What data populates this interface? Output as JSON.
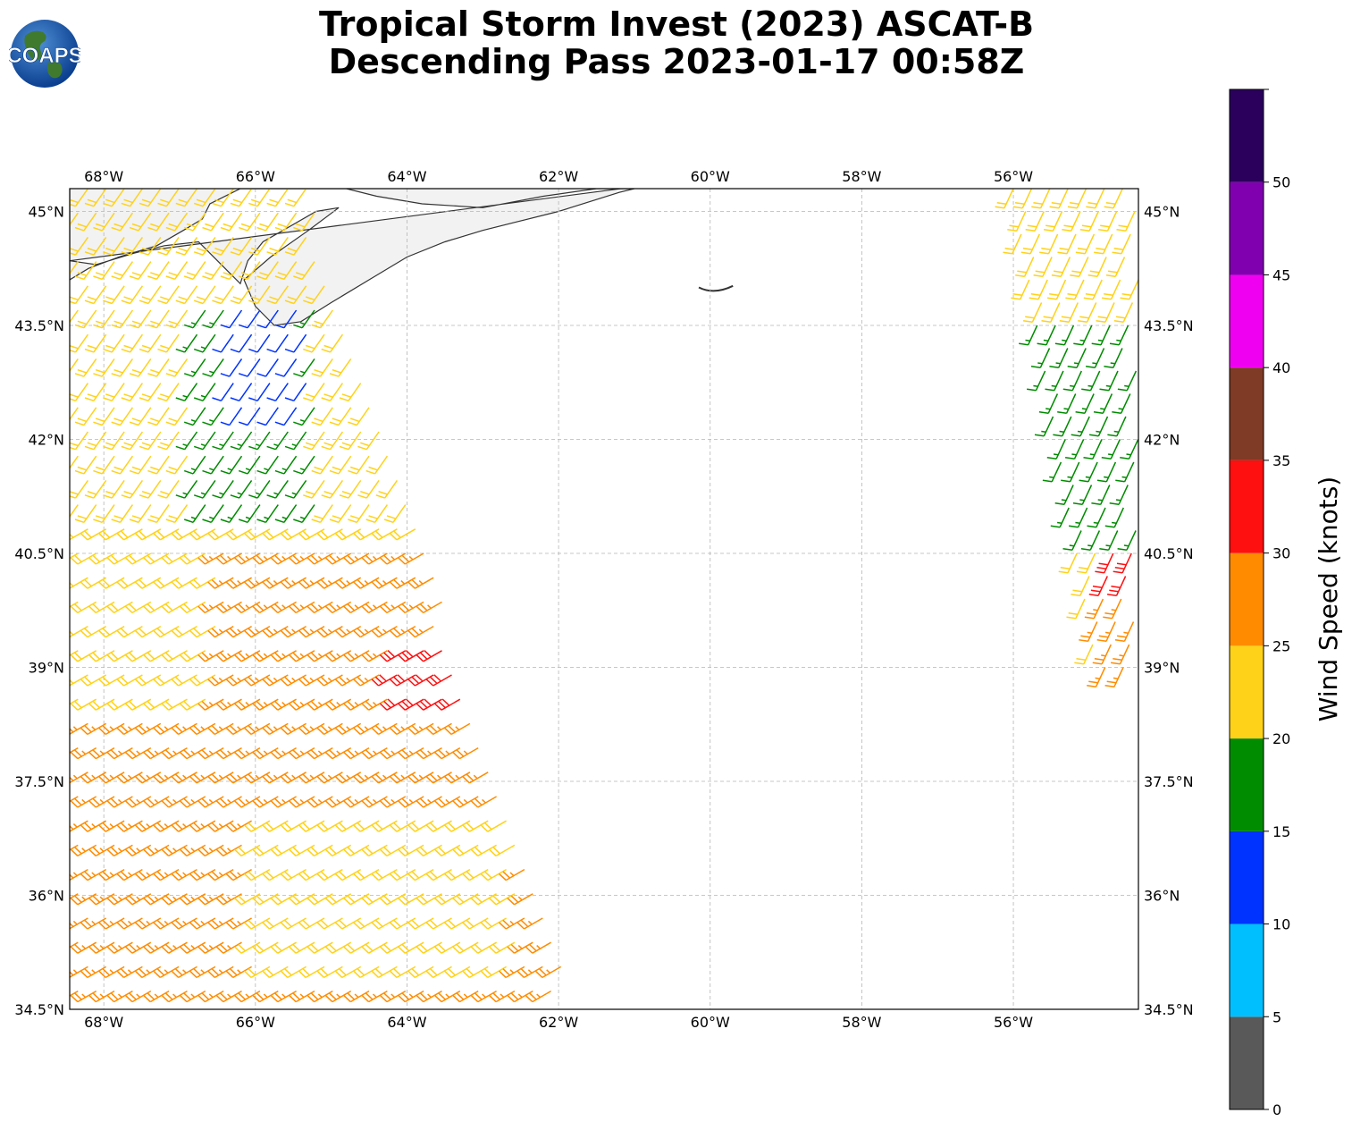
{
  "title": {
    "line1": "Tropical Storm Invest (2023) ASCAT-B",
    "line2": "Descending Pass 2023-01-17 00:58Z"
  },
  "logo": {
    "text": "COAPS"
  },
  "map": {
    "lon_range": [
      -68.45,
      -54.35
    ],
    "lat_range": [
      34.5,
      45.3
    ],
    "lon_ticks": [
      {
        "value": -68,
        "label": "68°W"
      },
      {
        "value": -66,
        "label": "66°W"
      },
      {
        "value": -64,
        "label": "64°W"
      },
      {
        "value": -62,
        "label": "62°W"
      },
      {
        "value": -60,
        "label": "60°W"
      },
      {
        "value": -58,
        "label": "58°W"
      },
      {
        "value": -56,
        "label": "56°W"
      }
    ],
    "lat_ticks": [
      {
        "value": 45,
        "label": "45°N"
      },
      {
        "value": 43.5,
        "label": "43.5°N"
      },
      {
        "value": 42,
        "label": "42°N"
      },
      {
        "value": 40.5,
        "label": "40.5°N"
      },
      {
        "value": 39,
        "label": "39°N"
      },
      {
        "value": 37.5,
        "label": "37.5°N"
      },
      {
        "value": 36,
        "label": "36°N"
      },
      {
        "value": 34.5,
        "label": "34.5°N"
      }
    ],
    "gridlines": true,
    "land_color": "#f2f2f2",
    "coast_color": "#333333"
  },
  "colorbar": {
    "label": "Wind Speed (knots)",
    "ticks": [
      "0",
      "5",
      "10",
      "15",
      "20",
      "25",
      "30",
      "35",
      "40",
      "45",
      "50"
    ],
    "bins": [
      {
        "from": 0,
        "to": 5,
        "color": "#595959"
      },
      {
        "from": 5,
        "to": 10,
        "color": "#00bfff"
      },
      {
        "from": 10,
        "to": 15,
        "color": "#0033ff"
      },
      {
        "from": 15,
        "to": 20,
        "color": "#008c00"
      },
      {
        "from": 20,
        "to": 25,
        "color": "#ffd21a"
      },
      {
        "from": 25,
        "to": 30,
        "color": "#ff8c00"
      },
      {
        "from": 30,
        "to": 35,
        "color": "#ff1010"
      },
      {
        "from": 35,
        "to": 40,
        "color": "#7f3b26"
      },
      {
        "from": 40,
        "to": 45,
        "color": "#f000f0"
      },
      {
        "from": 45,
        "to": 50,
        "color": "#8000b0"
      },
      {
        "from": 50,
        "to": 55,
        "color": "#2a005c"
      }
    ]
  },
  "chart_data": {
    "type": "wind-barb-map",
    "swaths": [
      {
        "lon_top": [
          -68.45,
          -65.3
        ],
        "lon_bottom": [
          -68.45,
          -61.8
        ],
        "lat_range": [
          34.55,
          45.3
        ],
        "speed_zones": [
          {
            "lat_min": 41.0,
            "lat_max": 45.3,
            "lon_min": -68.45,
            "lon_max": -65.0,
            "speed_kt": 22
          },
          {
            "lat_min": 41.0,
            "lat_max": 44.0,
            "lon_min": -66.8,
            "lon_max": -65.2,
            "speed_kt": 17
          },
          {
            "lat_min": 42.2,
            "lat_max": 43.8,
            "lon_min": -66.3,
            "lon_max": -65.3,
            "speed_kt": 13
          },
          {
            "lat_min": 39.0,
            "lat_max": 41.0,
            "lon_min": -68.45,
            "lon_max": -63.5,
            "speed_kt": 23
          },
          {
            "lat_min": 37.0,
            "lat_max": 40.5,
            "lon_min": -66.5,
            "lon_max": -62.8,
            "speed_kt": 27
          },
          {
            "lat_min": 38.2,
            "lat_max": 39.5,
            "lon_min": -64.2,
            "lon_max": -63.1,
            "speed_kt": 32
          },
          {
            "lat_min": 34.5,
            "lat_max": 38.5,
            "lon_min": -68.45,
            "lon_max": -61.8,
            "speed_kt": 28
          },
          {
            "lat_min": 35.8,
            "lat_max": 36.8,
            "lon_min": -64.2,
            "lon_max": -63.2,
            "speed_kt": 18
          },
          {
            "lat_min": 35.0,
            "lat_max": 37.0,
            "lon_min": -66.0,
            "lon_max": -62.5,
            "speed_kt": 23
          }
        ]
      },
      {
        "lon_top": [
          -56.0,
          -54.35
        ],
        "lon_bottom": [
          -54.9,
          -54.35
        ],
        "lat_range": [
          39.0,
          45.3
        ],
        "speed_zones": [
          {
            "lat_min": 43.8,
            "lat_max": 45.3,
            "lon_min": -56.0,
            "lon_max": -54.35,
            "speed_kt": 24
          },
          {
            "lat_min": 40.8,
            "lat_max": 43.8,
            "lon_min": -55.8,
            "lon_max": -54.35,
            "speed_kt": 18
          },
          {
            "lat_min": 40.2,
            "lat_max": 40.6,
            "lon_min": -54.9,
            "lon_max": -54.35,
            "speed_kt": 32
          },
          {
            "lat_min": 39.0,
            "lat_max": 40.2,
            "lon_min": -54.9,
            "lon_max": -54.35,
            "speed_kt": 27
          }
        ]
      }
    ]
  }
}
